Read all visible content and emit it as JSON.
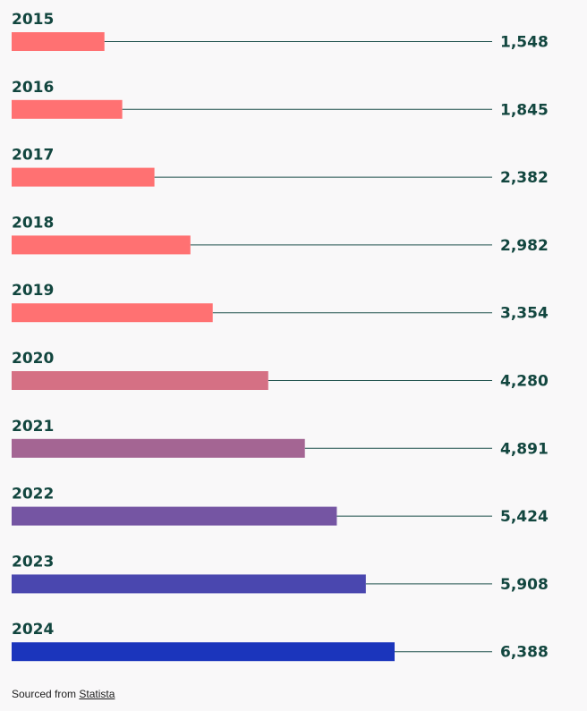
{
  "chart_data": {
    "type": "bar",
    "orientation": "horizontal",
    "categories": [
      "2015",
      "2016",
      "2017",
      "2018",
      "2019",
      "2020",
      "2021",
      "2022",
      "2023",
      "2024"
    ],
    "values": [
      1548,
      1845,
      2382,
      2982,
      3354,
      4280,
      4891,
      5424,
      5908,
      6388
    ],
    "value_labels": [
      "1,548",
      "1,845",
      "2,382",
      "2,982",
      "3,354",
      "4,280",
      "4,891",
      "5,424",
      "5,908",
      "6,388"
    ],
    "bar_colors": [
      "#ff7172",
      "#ff7172",
      "#ff7172",
      "#ff7172",
      "#ff7172",
      "#d57084",
      "#a46593",
      "#7555a3",
      "#4a47af",
      "#1b35bc"
    ],
    "title": "",
    "xlabel": "",
    "ylabel": "",
    "xlim": [
      0,
      6388
    ],
    "grid": false,
    "legend": "none"
  },
  "source": {
    "prefix": "Sourced from",
    "link_text": "Statista"
  }
}
